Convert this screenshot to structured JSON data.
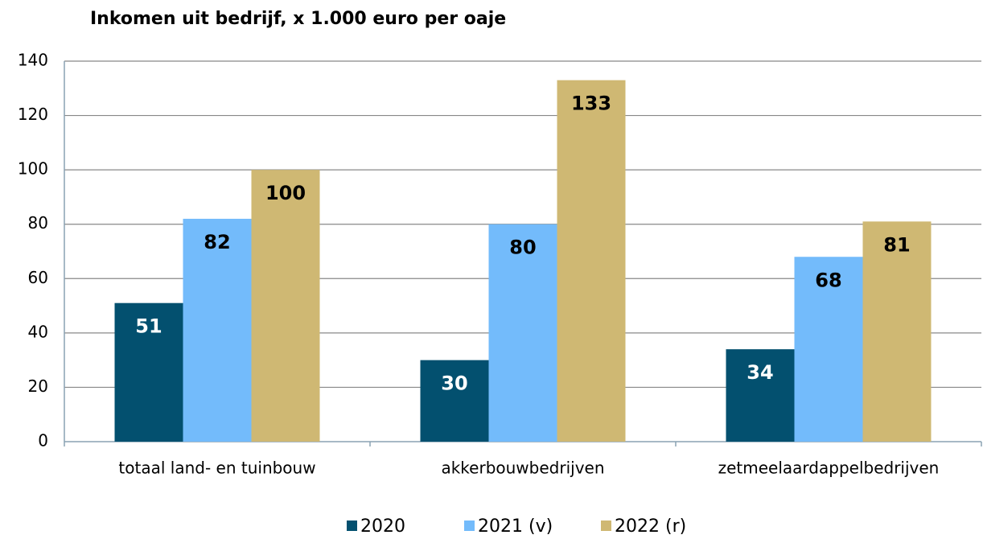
{
  "chart_data": {
    "type": "bar",
    "title": "Inkomen uit bedrijf, x 1.000 euro per oaje",
    "categories": [
      "totaal land- en tuinbouw",
      "akkerbouwbedrijven",
      "zetmeelaardappelbedrijven"
    ],
    "series": [
      {
        "name": "2020",
        "color": "#03506f",
        "label_color": "#ffffff",
        "values": [
          51,
          30,
          34
        ]
      },
      {
        "name": "2021 (v)",
        "color": "#73bbfb",
        "label_color": "#000000",
        "values": [
          82,
          80,
          68
        ]
      },
      {
        "name": "2022 (r)",
        "color": "#cfb873",
        "label_color": "#000000",
        "values": [
          100,
          133,
          81
        ]
      }
    ],
    "ylim": [
      0,
      140
    ],
    "yticks": [
      0,
      20,
      40,
      60,
      80,
      100,
      120,
      140
    ],
    "grid": true
  }
}
